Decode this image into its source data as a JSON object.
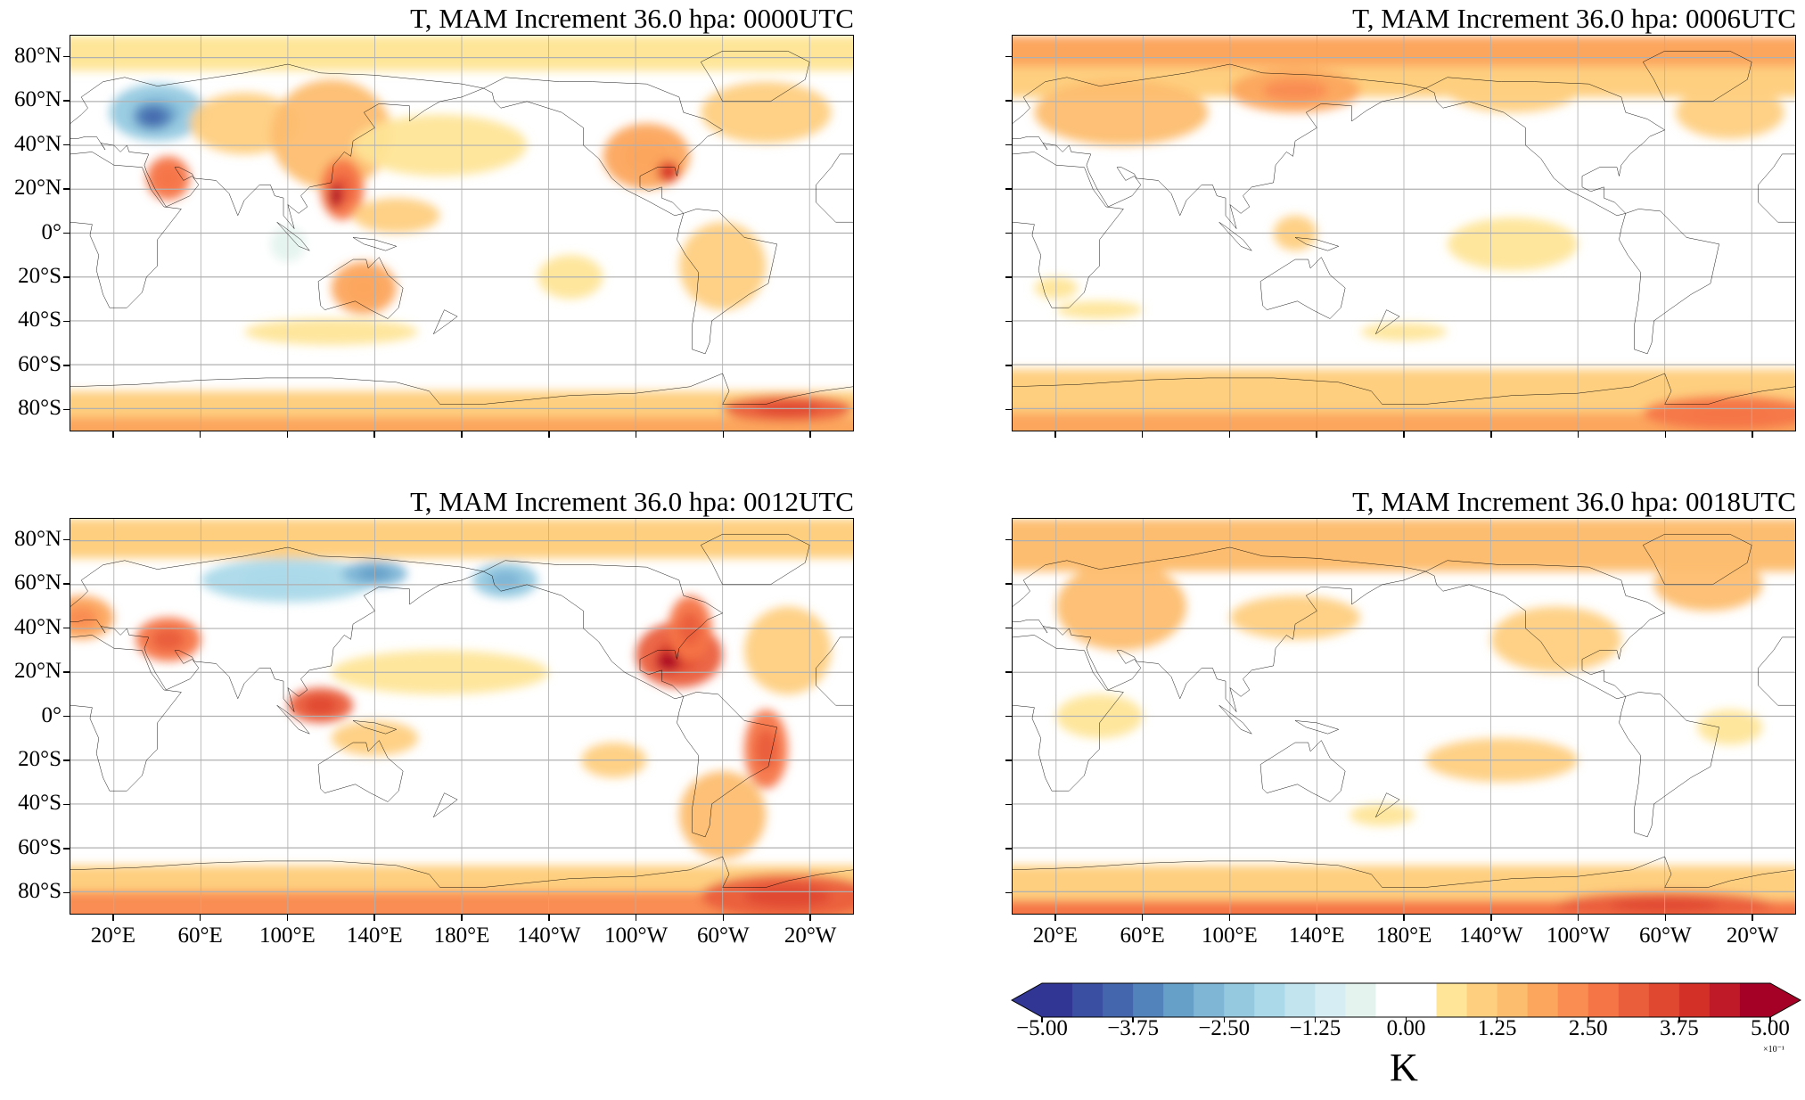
{
  "chart_data": {
    "type": "heatmap",
    "variable": "T",
    "units_label": "K",
    "colorbar": {
      "ticks": [
        "−5.00",
        "−3.75",
        "−2.50",
        "−1.25",
        "0.00",
        "1.25",
        "2.50",
        "3.75",
        "5.00"
      ],
      "tick_values": [
        -0.5,
        -0.375,
        -0.25,
        -0.125,
        0,
        0.125,
        0.25,
        0.375,
        0.5
      ],
      "multiplier_label": "×10⁻¹",
      "range": [
        -0.5,
        0.5
      ],
      "extend": "both",
      "levels": 24,
      "colors": [
        "#313695",
        "#3a4fa1",
        "#4466ac",
        "#5283bb",
        "#66a0c9",
        "#7fb6d6",
        "#95c9e0",
        "#abd9e9",
        "#c1e4ee",
        "#d6eef3",
        "#e4f3ee",
        "#ffffff",
        "#ffffff",
        "#fee597",
        "#fecf7f",
        "#fdbd6f",
        "#fca55d",
        "#f98d52",
        "#f57547",
        "#ea5e3c",
        "#e04830",
        "#d33027",
        "#bf1a28",
        "#a50026"
      ]
    },
    "lon_ticks": [
      "20°E",
      "60°E",
      "100°E",
      "140°E",
      "180°E",
      "140°W",
      "100°W",
      "60°W",
      "20°W"
    ],
    "lon_tick_values": [
      20,
      60,
      100,
      140,
      180,
      220,
      260,
      300,
      340
    ],
    "lat_ticks": [
      "80°N",
      "60°N",
      "40°N",
      "20°N",
      "0°",
      "20°S",
      "40°S",
      "60°S",
      "80°S"
    ],
    "lat_tick_values": [
      80,
      60,
      40,
      20,
      0,
      -20,
      -40,
      -60,
      -80
    ],
    "lon_range": [
      0,
      360
    ],
    "lat_range": [
      -90,
      90
    ],
    "grid": true,
    "panels": [
      {
        "title": "T, MAM Increment 36.0 hpa: 0000UTC",
        "bands": [
          [
            80,
            90,
            0.08
          ],
          [
            -72,
            -90,
            0.1
          ],
          [
            -84,
            -90,
            0.2
          ]
        ],
        "features": [
          [
            40,
            55,
            22,
            13,
            -0.22
          ],
          [
            38,
            53,
            9,
            6,
            -0.35
          ],
          [
            45,
            25,
            10,
            10,
            0.25
          ],
          [
            80,
            50,
            25,
            14,
            0.12
          ],
          [
            120,
            45,
            28,
            25,
            0.15
          ],
          [
            125,
            20,
            10,
            14,
            0.28
          ],
          [
            122,
            17,
            3,
            6,
            0.45
          ],
          [
            170,
            40,
            40,
            14,
            0.08
          ],
          [
            150,
            8,
            20,
            8,
            0.12
          ],
          [
            265,
            35,
            20,
            15,
            0.18
          ],
          [
            275,
            28,
            5,
            5,
            0.35
          ],
          [
            300,
            -15,
            20,
            20,
            0.12
          ],
          [
            135,
            -25,
            15,
            12,
            0.18
          ],
          [
            120,
            -45,
            40,
            6,
            0.08
          ],
          [
            320,
            55,
            30,
            14,
            0.1
          ],
          [
            330,
            -80,
            30,
            6,
            0.3
          ],
          [
            230,
            -20,
            15,
            10,
            0.08
          ],
          [
            100,
            -5,
            8,
            8,
            -0.08
          ]
        ]
      },
      {
        "title": "T, MAM Increment 36.0 hpa: 0006UTC",
        "bands": [
          [
            68,
            90,
            0.12
          ],
          [
            82,
            90,
            0.18
          ],
          [
            -62,
            -90,
            0.1
          ],
          [
            -82,
            -90,
            0.18
          ]
        ],
        "features": [
          [
            50,
            55,
            40,
            15,
            0.15
          ],
          [
            130,
            65,
            30,
            10,
            0.2
          ],
          [
            230,
            65,
            30,
            10,
            0.12
          ],
          [
            330,
            55,
            25,
            12,
            0.12
          ],
          [
            330,
            -82,
            40,
            8,
            0.25
          ],
          [
            230,
            -5,
            30,
            12,
            0.08
          ],
          [
            40,
            -35,
            20,
            4,
            0.08
          ],
          [
            180,
            -45,
            20,
            4,
            0.08
          ],
          [
            130,
            0,
            10,
            8,
            0.1
          ],
          [
            20,
            -25,
            10,
            5,
            0.06
          ]
        ]
      },
      {
        "title": "T, MAM Increment 36.0 hpa: 0012UTC",
        "bands": [
          [
            78,
            90,
            0.1
          ],
          [
            -68,
            -90,
            0.12
          ],
          [
            -80,
            -90,
            0.22
          ]
        ],
        "features": [
          [
            100,
            62,
            40,
            10,
            -0.18
          ],
          [
            140,
            65,
            15,
            6,
            -0.28
          ],
          [
            200,
            62,
            15,
            8,
            -0.22
          ],
          [
            45,
            35,
            15,
            10,
            0.28
          ],
          [
            5,
            45,
            15,
            10,
            0.2
          ],
          [
            115,
            5,
            15,
            8,
            0.3
          ],
          [
            280,
            28,
            20,
            15,
            0.32
          ],
          [
            275,
            25,
            6,
            5,
            0.45
          ],
          [
            285,
            40,
            10,
            15,
            0.28
          ],
          [
            320,
            -15,
            10,
            18,
            0.28
          ],
          [
            330,
            -82,
            40,
            10,
            0.3
          ],
          [
            330,
            30,
            20,
            20,
            0.1
          ],
          [
            170,
            20,
            50,
            10,
            0.08
          ],
          [
            140,
            -10,
            20,
            8,
            0.1
          ],
          [
            300,
            -45,
            20,
            20,
            0.15
          ],
          [
            250,
            -20,
            15,
            8,
            0.1
          ]
        ]
      },
      {
        "title": "T, MAM Increment 36.0 hpa: 0018UTC",
        "bands": [
          [
            72,
            90,
            0.14
          ],
          [
            -68,
            -90,
            0.12
          ],
          [
            -84,
            -90,
            0.25
          ]
        ],
        "features": [
          [
            50,
            50,
            30,
            20,
            0.15
          ],
          [
            130,
            45,
            30,
            10,
            0.1
          ],
          [
            250,
            35,
            30,
            15,
            0.1
          ],
          [
            225,
            -20,
            35,
            10,
            0.12
          ],
          [
            40,
            0,
            20,
            10,
            0.08
          ],
          [
            320,
            60,
            25,
            12,
            0.15
          ],
          [
            300,
            -86,
            50,
            6,
            0.32
          ],
          [
            170,
            -45,
            15,
            5,
            0.08
          ],
          [
            330,
            -5,
            15,
            8,
            0.08
          ]
        ]
      }
    ]
  }
}
